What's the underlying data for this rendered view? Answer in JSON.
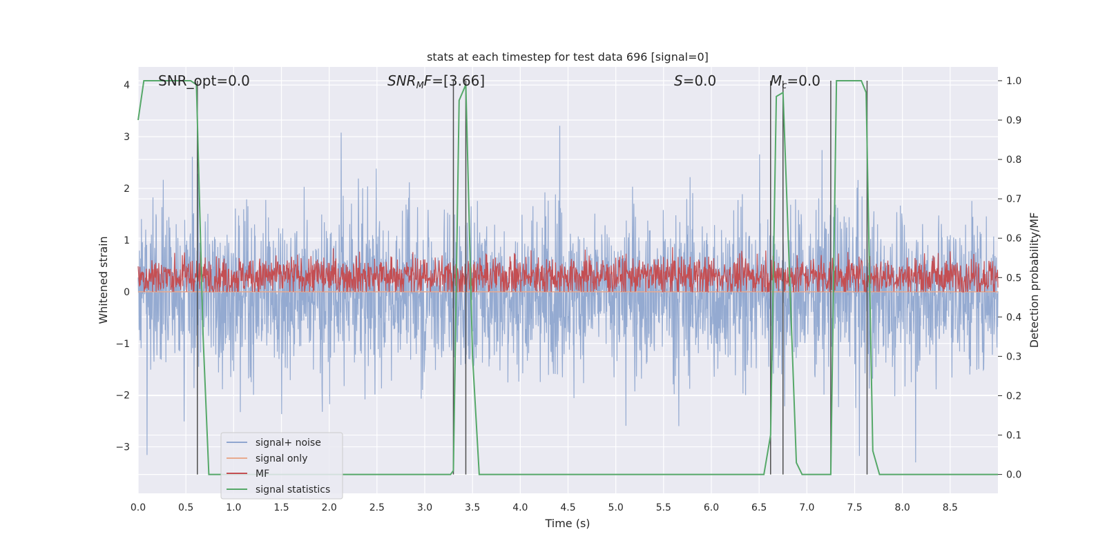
{
  "chart_data": {
    "type": "line",
    "title": "stats at each timestep for test data 696 [signal=0]",
    "xlabel": "Time (s)",
    "ylabel": "Whitened strain",
    "y2label": "Detection probability/MF",
    "xlim": [
      0,
      9.0
    ],
    "ylim": [
      -3.9,
      4.35
    ],
    "y2lim": [
      -0.048,
      1.035
    ],
    "x_ticks": [
      0.0,
      0.5,
      1.0,
      1.5,
      2.0,
      2.5,
      3.0,
      3.5,
      4.0,
      4.5,
      5.0,
      5.5,
      6.0,
      6.5,
      7.0,
      7.5,
      8.0,
      8.5
    ],
    "x_tick_labels": [
      "0.0",
      "0.5",
      "1.0",
      "1.5",
      "2.0",
      "2.5",
      "3.0",
      "3.5",
      "4.0",
      "4.5",
      "5.0",
      "5.5",
      "6.0",
      "6.5",
      "7.0",
      "7.5",
      "8.0",
      "8.5"
    ],
    "y_ticks": [
      -3,
      -2,
      -1,
      0,
      1,
      2,
      3,
      4
    ],
    "y_tick_labels": [
      "−3",
      "−2",
      "−1",
      "0",
      "1",
      "2",
      "3",
      "4"
    ],
    "y2_ticks": [
      0.0,
      0.1,
      0.2,
      0.3,
      0.4,
      0.5,
      0.6,
      0.7,
      0.8,
      0.9,
      1.0
    ],
    "y2_tick_labels": [
      "0.0",
      "0.1",
      "0.2",
      "0.3",
      "0.4",
      "0.5",
      "0.6",
      "0.7",
      "0.8",
      "0.9",
      "1.0"
    ],
    "grid": true,
    "legend_position": "lower-left",
    "annotations": [
      {
        "plain": "SNR_opt=0.0"
      },
      {
        "italic": "SNR",
        "sub": "M",
        "rest_italic": "F",
        "plain": "=[3.66]"
      },
      {
        "italic": "S",
        "plain": "=0.0"
      },
      {
        "italic": "M",
        "sub": "c",
        "plain": "=0.0"
      }
    ],
    "series": [
      {
        "name": "signal+ noise",
        "color": "#8FA6CF",
        "axis": "left",
        "style": "dense noise trace, roughly symmetric about 0, envelope about ±2.5 with peaks up to about 4 and down to about -3"
      },
      {
        "name": "signal only",
        "color": "#E8A98D",
        "axis": "left",
        "x": [
          0,
          9.0
        ],
        "y": [
          0,
          0
        ]
      },
      {
        "name": "MF",
        "color": "#C44E52",
        "axis": "left",
        "style": "dense trace between about 0 and 1.0, centred near 0.3"
      },
      {
        "name": "signal statistics",
        "color": "#55A868",
        "axis": "right",
        "x": [
          0.0,
          0.06,
          0.55,
          0.61,
          0.68,
          0.74,
          3.27,
          3.3,
          3.36,
          3.43,
          3.5,
          3.57,
          6.55,
          6.62,
          6.68,
          6.75,
          6.82,
          6.89,
          6.95,
          7.25,
          7.31,
          7.57,
          7.62,
          7.69,
          7.76,
          9.0
        ],
        "y": [
          0.9,
          1.0,
          1.0,
          0.99,
          0.35,
          0.0,
          0.0,
          0.01,
          0.95,
          0.99,
          0.3,
          0.0,
          0.0,
          0.1,
          0.96,
          0.97,
          0.5,
          0.03,
          0.0,
          0.0,
          1.0,
          1.0,
          0.97,
          0.06,
          0.0,
          0.0
        ]
      }
    ],
    "vertical_markers": [
      {
        "x": 0.62,
        "y2_range": [
          0.0,
          1.0
        ]
      },
      {
        "x": 3.3,
        "y2_range": [
          0.0,
          1.0
        ]
      },
      {
        "x": 3.43,
        "y2_range": [
          0.0,
          1.0
        ]
      },
      {
        "x": 6.62,
        "y2_range": [
          0.0,
          1.0
        ]
      },
      {
        "x": 6.75,
        "y2_range": [
          0.0,
          1.0
        ]
      },
      {
        "x": 7.25,
        "y2_range": [
          0.0,
          1.0
        ]
      },
      {
        "x": 7.63,
        "y2_range": [
          0.0,
          1.0
        ]
      }
    ]
  },
  "colors": {
    "plot_background": "#EAEAF2",
    "grid": "#FFFFFF",
    "marker_line": "#4D4D4D"
  }
}
